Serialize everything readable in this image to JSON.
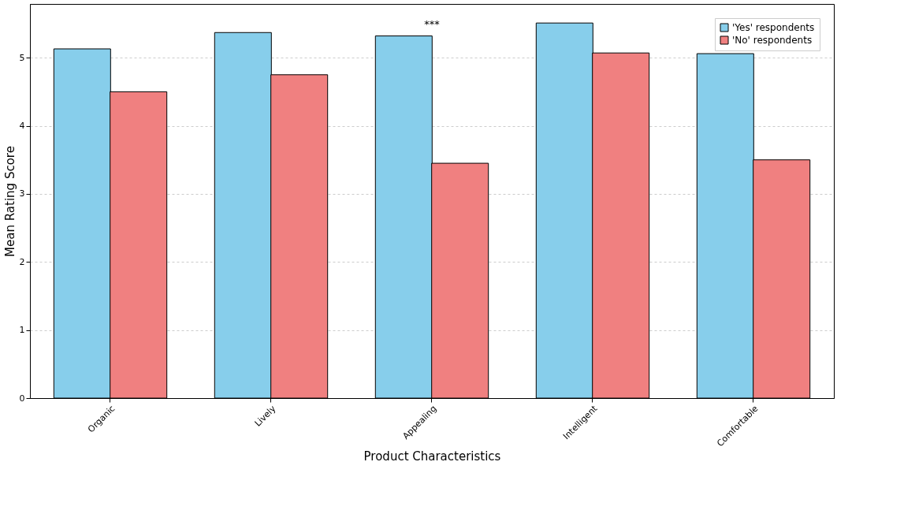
{
  "chart_data": {
    "type": "bar",
    "xlabel": "Product Characteristics",
    "ylabel": "Mean Rating Score",
    "categories": [
      "Organic",
      "Lively",
      "Appealing",
      "Intelligent",
      "Comfortable"
    ],
    "series": [
      {
        "name": "'Yes' respondents",
        "color": "#87ceeb",
        "values": [
          5.13,
          5.37,
          5.32,
          5.51,
          5.06
        ]
      },
      {
        "name": "'No' respondents",
        "color": "#f08080",
        "values": [
          4.5,
          4.75,
          3.45,
          5.07,
          3.5
        ]
      }
    ],
    "ylim": [
      0,
      5.79
    ],
    "yticks": [
      0,
      1,
      2,
      3,
      4,
      5
    ],
    "grid": "y",
    "legend": "top right",
    "annotations": [
      "***"
    ]
  }
}
